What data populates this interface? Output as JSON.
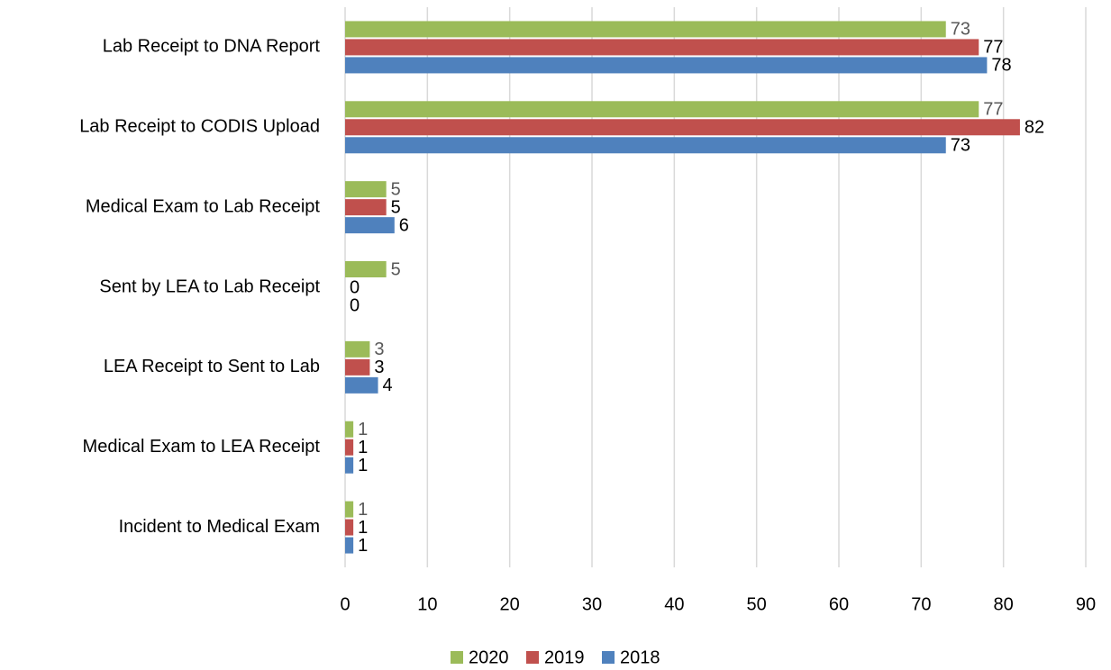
{
  "chart_data": {
    "type": "bar",
    "orientation": "horizontal",
    "categories": [
      "Lab Receipt to DNA Report",
      "Lab Receipt to CODIS Upload",
      "Medical Exam to Lab Receipt",
      "Sent by LEA to Lab Receipt",
      "LEA Receipt to Sent to Lab",
      "Medical Exam to LEA Receipt",
      "Incident to Medical Exam"
    ],
    "series": [
      {
        "name": "2020",
        "color": "#9bbb59",
        "label_color": "#595959",
        "values": [
          73,
          77,
          5,
          5,
          3,
          1,
          1
        ]
      },
      {
        "name": "2019",
        "color": "#c0504d",
        "label_color": "#000000",
        "values": [
          77,
          82,
          5,
          0,
          3,
          1,
          1
        ]
      },
      {
        "name": "2018",
        "color": "#4f81bd",
        "label_color": "#000000",
        "values": [
          78,
          73,
          6,
          0,
          4,
          1,
          1
        ]
      }
    ],
    "xlim": [
      0,
      90
    ],
    "xticks": [
      0,
      10,
      20,
      30,
      40,
      50,
      60,
      70,
      80,
      90
    ],
    "grid": true,
    "legend": "bottom"
  }
}
